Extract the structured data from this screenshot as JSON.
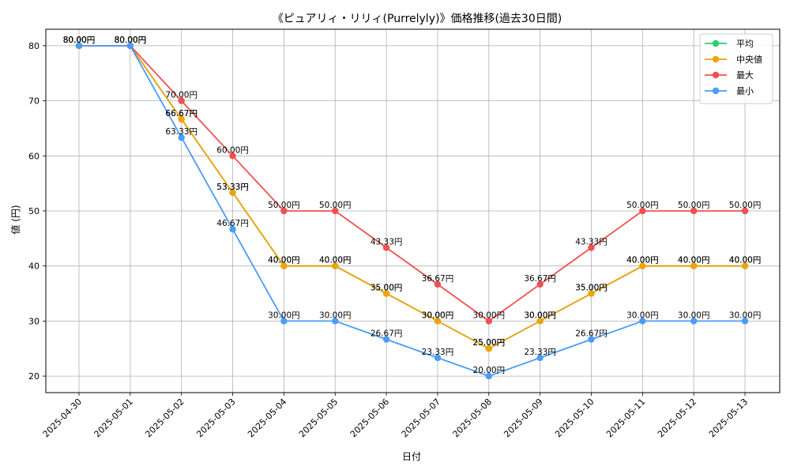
{
  "chart_data": {
    "type": "line",
    "title": "《ピュアリィ・リリィ(Purrelyly)》価格推移(過去30日間)",
    "xlabel": "日付",
    "ylabel": "値 (円)",
    "ylim": [
      17,
      83
    ],
    "yticks": [
      20,
      30,
      40,
      50,
      60,
      70,
      80
    ],
    "grid": true,
    "legend_position": "top-right",
    "value_suffix": "円",
    "categories": [
      "2025-04-30",
      "2025-05-01",
      "2025-05-02",
      "2025-05-03",
      "2025-05-04",
      "2025-05-05",
      "2025-05-06",
      "2025-05-07",
      "2025-05-08",
      "2025-05-09",
      "2025-05-10",
      "2025-05-11",
      "2025-05-12",
      "2025-05-13"
    ],
    "series": [
      {
        "name": "平均",
        "color": "#2ecc71",
        "values": [
          80.0,
          80.0,
          66.67,
          53.33,
          40.0,
          40.0,
          35.0,
          30.0,
          25.0,
          30.0,
          35.0,
          40.0,
          40.0,
          40.0
        ]
      },
      {
        "name": "中央値",
        "color": "#f0a30a",
        "values": [
          80.0,
          80.0,
          66.67,
          53.33,
          40.0,
          40.0,
          35.0,
          30.0,
          25.0,
          30.0,
          35.0,
          40.0,
          40.0,
          40.0
        ]
      },
      {
        "name": "最大",
        "color": "#f05050",
        "values": [
          80.0,
          80.0,
          70.0,
          60.0,
          50.0,
          50.0,
          43.33,
          36.67,
          30.0,
          36.67,
          43.33,
          50.0,
          50.0,
          50.0
        ]
      },
      {
        "name": "最小",
        "color": "#4a9cf5",
        "values": [
          80.0,
          80.0,
          63.33,
          46.67,
          30.0,
          30.0,
          26.67,
          23.33,
          20.0,
          23.33,
          26.67,
          30.0,
          30.0,
          30.0
        ]
      }
    ]
  }
}
